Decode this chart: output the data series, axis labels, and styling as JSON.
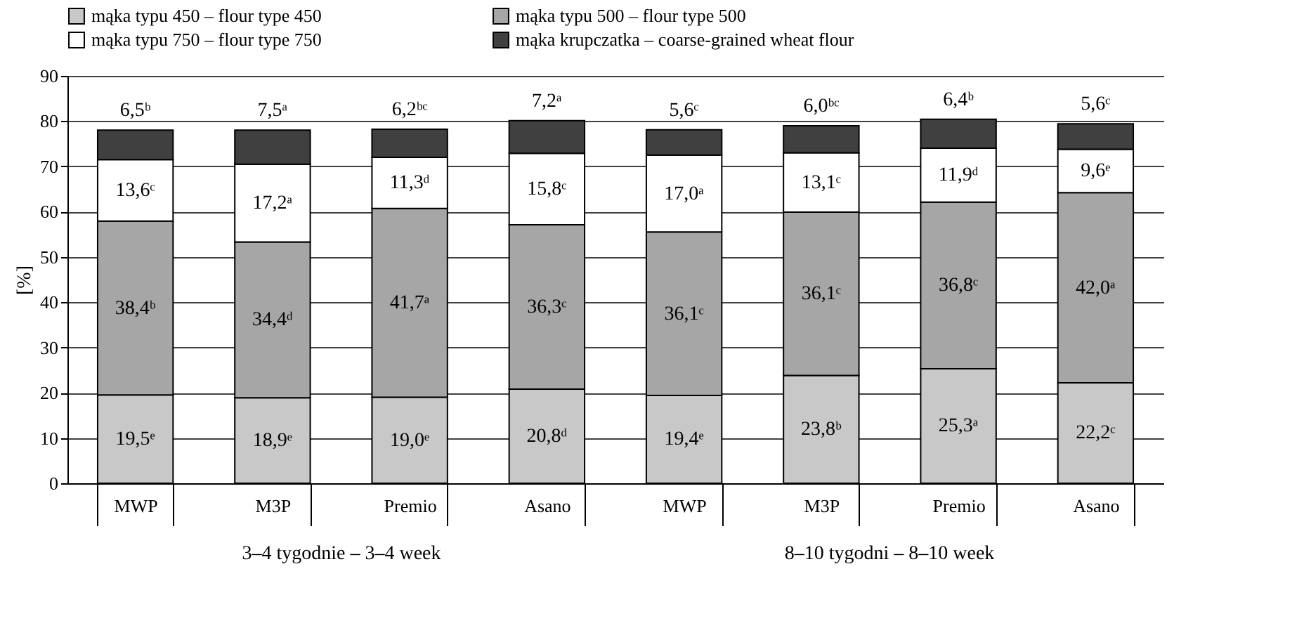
{
  "chart_data": {
    "type": "bar",
    "stacked": true,
    "ylabel": "[%]",
    "categories": [
      "MWP",
      "M3P",
      "Premio",
      "Asano",
      "MWP",
      "M3P",
      "Premio",
      "Asano"
    ],
    "series": [
      {
        "name": "mąka typu 450 – flour type 450",
        "color": "#c8c8c8",
        "values": [
          19.5,
          18.9,
          19.0,
          20.8,
          19.4,
          23.8,
          25.3,
          22.2
        ],
        "value_labels": [
          "19,5ᵉ",
          "18,9ᵉ",
          "19,0ᵉ",
          "20,8ᵈ",
          "19,4ᵉ",
          "23,8ᵇ",
          "25,3ᵃ",
          "22,2ᶜ"
        ]
      },
      {
        "name": "mąka typu 500 – flour type 500",
        "color": "#a6a6a6",
        "values": [
          38.4,
          34.4,
          41.7,
          36.3,
          36.1,
          36.1,
          36.8,
          42.0
        ],
        "value_labels": [
          "38,4ᵇ",
          "34,4ᵈ",
          "41,7ᵃ",
          "36,3ᶜ",
          "36,1ᶜ",
          "36,1ᶜ",
          "36,8ᶜ",
          "42,0ᵃ"
        ]
      },
      {
        "name": "mąka typu 750 – flour type 750",
        "color": "#ffffff",
        "values": [
          13.6,
          17.2,
          11.3,
          15.8,
          17.0,
          13.1,
          11.9,
          9.6
        ],
        "value_labels": [
          "13,6ᶜ",
          "17,2ᵃ",
          "11,3ᵈ",
          "15,8ᶜ",
          "17,0ᵃ",
          "13,1ᶜ",
          "11,9ᵈ",
          "9,6ᵉ"
        ]
      },
      {
        "name": "mąka krupczatka – coarse-grained wheat flour",
        "color": "#404040",
        "values": [
          6.5,
          7.5,
          6.2,
          7.2,
          5.6,
          6.0,
          6.4,
          5.6
        ],
        "value_labels": [
          "6,5ᵇ",
          "7,5ᵃ",
          "6,2ᵇᶜ",
          "7,2ᵃ",
          "5,6ᶜ",
          "6,0ᵇᶜ",
          "6,4ᵇ",
          "5,6ᶜ"
        ]
      }
    ],
    "ylim": [
      0,
      90
    ],
    "yticks": [
      0,
      10,
      20,
      30,
      40,
      50,
      60,
      70,
      80,
      90
    ],
    "grid": "y",
    "legend": "top",
    "annotations": [
      "3–4 tygodnie – 3–4 week",
      "8–10 tygodni – 8–10 week"
    ]
  }
}
